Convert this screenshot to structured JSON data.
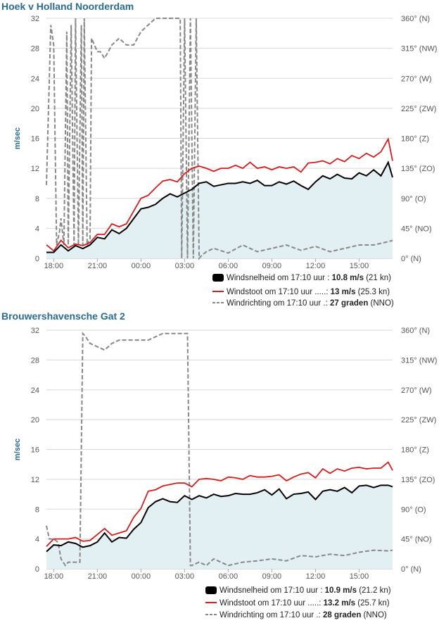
{
  "charts": [
    {
      "title": "Hoek v Holland Noorderdam",
      "legend": [
        {
          "key": "speed",
          "label": "Windsnelheid om 17:10 uur :",
          "value": "10.8 m/s",
          "extra": "(21 kn)"
        },
        {
          "key": "gust",
          "label": "Windstoot om 17:10 uur .....:",
          "value": "13 m/s",
          "extra": "(25.3 kn)"
        },
        {
          "key": "dir",
          "label": "Windrichting om 17:10 uur .:",
          "value": "27 graden",
          "extra": "(NNO)"
        }
      ]
    },
    {
      "title": "Brouwershavensche Gat 2",
      "legend": [
        {
          "key": "speed",
          "label": "Windsnelheid om 17:10 uur :",
          "value": "10.9 m/s",
          "extra": "(21.2 kn)"
        },
        {
          "key": "gust",
          "label": "Windstoot om 17:10 uur .....:",
          "value": "13.2 m/s",
          "extra": "(25.7 kn)"
        },
        {
          "key": "dir",
          "label": "Windrichting om 17:10 uur .:",
          "value": "28 graden",
          "extra": "(NNO)"
        }
      ]
    }
  ],
  "chart_data": [
    {
      "type": "line",
      "title": "Hoek v Holland Noorderdam",
      "ylabel": "m/sec",
      "y_ticks": [
        "0",
        "4",
        "8",
        "12",
        "16",
        "20",
        "24",
        "28",
        "32"
      ],
      "y2_ticks": [
        "0° (N)",
        "45° (NO)",
        "90° (O)",
        "135° (ZO)",
        "180° (Z)",
        "225° (ZW)",
        "270° (W)",
        "315° (NW)",
        "360° (N)"
      ],
      "x_ticks": [
        "18:00",
        "21:00",
        "00:00",
        "03:00",
        "06:00",
        "09:00",
        "12:00",
        "15:00"
      ],
      "ylim": [
        0,
        32
      ],
      "y2lim": [
        0,
        360
      ],
      "xlim_hours": [
        17.5,
        41.3
      ],
      "grid": true,
      "colors": {
        "speed": "#000000",
        "gust": "#d21f1f",
        "dir": "#888888",
        "fill": "#e3f0f3"
      },
      "series": [
        {
          "name": "Windsnelheid",
          "key": "speed",
          "x": [
            17.5,
            18,
            18.5,
            19,
            19.5,
            20,
            20.5,
            21,
            21.5,
            22,
            22.5,
            23,
            23.5,
            24,
            24.5,
            25,
            25.5,
            26,
            26.5,
            27,
            27.5,
            28,
            28.5,
            29,
            29.5,
            30,
            30.5,
            31,
            31.5,
            32,
            32.5,
            33,
            33.5,
            34,
            34.5,
            35,
            35.5,
            36,
            36.5,
            37,
            37.5,
            38,
            38.5,
            39,
            39.5,
            40,
            40.5,
            41,
            41.3
          ],
          "values": [
            0.8,
            0.8,
            1.8,
            1.0,
            1.7,
            1.3,
            1.8,
            2.8,
            2.6,
            3.8,
            3.3,
            4.0,
            5.3,
            6.6,
            6.8,
            7.2,
            8.0,
            8.6,
            8.2,
            8.7,
            9.2,
            10.0,
            10.2,
            9.6,
            9.8,
            10.0,
            10.0,
            10.2,
            10.0,
            10.4,
            9.7,
            9.7,
            10.2,
            9.9,
            10.3,
            9.7,
            9.2,
            10.2,
            11.0,
            10.6,
            11.2,
            10.7,
            10.6,
            11.4,
            11.0,
            11.8,
            11.0,
            12.8,
            10.8
          ]
        },
        {
          "name": "Windstoot",
          "key": "gust",
          "x": [
            17.5,
            18,
            18.5,
            19,
            19.5,
            20,
            20.5,
            21,
            21.5,
            22,
            22.5,
            23,
            23.5,
            24,
            24.5,
            25,
            25.5,
            26,
            26.5,
            27,
            27.5,
            28,
            28.5,
            29,
            29.5,
            30,
            30.5,
            31,
            31.5,
            32,
            32.5,
            33,
            33.5,
            34,
            34.5,
            35,
            35.5,
            36,
            36.5,
            37,
            37.5,
            38,
            38.5,
            39,
            39.5,
            40,
            40.5,
            41,
            41.3
          ],
          "values": [
            1.8,
            1.0,
            2.4,
            1.4,
            1.9,
            1.7,
            2.1,
            3.2,
            3.2,
            4.6,
            4.2,
            4.6,
            6.3,
            8.0,
            8.4,
            9.4,
            10.3,
            10.5,
            10.2,
            11.3,
            12.0,
            12.3,
            12.0,
            11.6,
            12.0,
            12.0,
            12.4,
            12.0,
            12.8,
            12.0,
            12.2,
            11.8,
            12.2,
            12.0,
            12.2,
            11.5,
            12.7,
            12.8,
            13.0,
            12.6,
            13.3,
            12.9,
            13.7,
            13.3,
            14.0,
            13.5,
            14.2,
            15.9,
            13.0
          ]
        },
        {
          "name": "Windrichting",
          "key": "dir",
          "x": [
            17.5,
            17.8,
            18.0,
            18.2,
            18.4,
            18.5,
            18.7,
            18.9,
            19.0,
            19.2,
            19.4,
            19.5,
            19.7,
            19.9,
            20.0,
            20.1,
            20.3,
            20.5,
            20.6,
            20.8,
            21.0,
            21.2,
            21.5,
            22.0,
            22.5,
            23.0,
            23.5,
            24.0,
            24.5,
            25.0,
            25.5,
            26.0,
            26.5,
            26.7,
            26.8,
            27.0,
            27.2,
            27.4,
            27.6,
            27.8,
            28.0,
            28.2,
            28.5,
            29.0,
            30.0,
            31.0,
            32.0,
            33.0,
            34.0,
            35.0,
            36.0,
            37.0,
            38.0,
            39.0,
            40.0,
            41.0,
            41.3
          ],
          "values": [
            110,
            350,
            320,
            20,
            40,
            60,
            20,
            340,
            20,
            350,
            20,
            360,
            20,
            350,
            20,
            360,
            20,
            30,
            330,
            320,
            310,
            310,
            300,
            320,
            330,
            320,
            320,
            340,
            350,
            360,
            360,
            365,
            360,
            365,
            0,
            365,
            0,
            365,
            0,
            365,
            0,
            5,
            10,
            15,
            8,
            20,
            10,
            15,
            20,
            12,
            18,
            10,
            15,
            20,
            20,
            25,
            27
          ]
        }
      ]
    },
    {
      "type": "line",
      "title": "Brouwershavensche Gat 2",
      "ylabel": "m/sec",
      "y_ticks": [
        "0",
        "4",
        "8",
        "12",
        "16",
        "20",
        "24",
        "28",
        "32"
      ],
      "y2_ticks": [
        "0° (N)",
        "45° (NO)",
        "90° (O)",
        "135° (ZO)",
        "180° (Z)",
        "225° (ZW)",
        "270° (W)",
        "315° (NW)",
        "360° (N)"
      ],
      "x_ticks": [
        "18:00",
        "21:00",
        "00:00",
        "03:00",
        "06:00",
        "09:00",
        "12:00",
        "15:00"
      ],
      "ylim": [
        0,
        32
      ],
      "y2lim": [
        0,
        360
      ],
      "xlim_hours": [
        17.5,
        41.3
      ],
      "grid": true,
      "colors": {
        "speed": "#000000",
        "gust": "#d21f1f",
        "dir": "#888888",
        "fill": "#e3f0f3"
      },
      "series": [
        {
          "name": "Windsnelheid",
          "key": "speed",
          "x": [
            17.5,
            18,
            18.5,
            19,
            19.5,
            20,
            20.5,
            21,
            21.5,
            22,
            22.5,
            23,
            23.5,
            24,
            24.5,
            25,
            25.5,
            26,
            26.5,
            27,
            27.5,
            28,
            28.5,
            29,
            29.5,
            30,
            30.5,
            31,
            31.5,
            32,
            32.5,
            33,
            33.5,
            34,
            34.5,
            35,
            35.5,
            36,
            36.5,
            37,
            37.5,
            38,
            38.5,
            39,
            39.5,
            40,
            40.5,
            41,
            41.3
          ],
          "values": [
            2.3,
            3.2,
            3.1,
            3.6,
            3.4,
            2.9,
            3.1,
            3.6,
            4.8,
            3.6,
            4.2,
            4.1,
            5.3,
            6.2,
            8.2,
            9.0,
            9.4,
            9.0,
            8.9,
            9.8,
            9.3,
            9.8,
            9.5,
            10.0,
            9.7,
            9.8,
            10.1,
            10.0,
            10.0,
            10.2,
            10.6,
            9.9,
            10.7,
            9.4,
            10.0,
            10.1,
            10.3,
            9.3,
            10.4,
            10.6,
            10.4,
            10.9,
            10.2,
            11.1,
            11.2,
            10.9,
            11.2,
            11.2,
            11.0
          ]
        },
        {
          "name": "Windstoot",
          "key": "gust",
          "x": [
            17.5,
            18,
            18.5,
            19,
            19.5,
            20,
            20.5,
            21,
            21.5,
            22,
            22.5,
            23,
            23.5,
            24,
            24.5,
            25,
            25.5,
            26,
            26.5,
            27,
            27.5,
            28,
            28.5,
            29,
            29.5,
            30,
            30.5,
            31,
            31.5,
            32,
            32.5,
            33,
            33.5,
            34,
            34.5,
            35,
            35.5,
            36,
            36.5,
            37,
            37.5,
            38,
            38.5,
            39,
            39.5,
            40,
            40.5,
            41,
            41.3
          ],
          "values": [
            3.0,
            4.0,
            4.0,
            4.0,
            4.2,
            3.7,
            3.8,
            4.6,
            5.4,
            4.5,
            4.8,
            5.1,
            6.9,
            8.1,
            10.4,
            10.6,
            11.1,
            11.3,
            11.5,
            11.5,
            11.0,
            12.0,
            12.1,
            12.0,
            11.8,
            12.3,
            12.2,
            12.0,
            12.5,
            12.3,
            12.3,
            12.4,
            12.6,
            11.8,
            12.3,
            12.7,
            12.9,
            12.2,
            13.4,
            12.8,
            13.4,
            13.1,
            13.5,
            13.6,
            13.4,
            13.5,
            13.5,
            14.3,
            13.2
          ]
        },
        {
          "name": "Windrichting",
          "key": "dir",
          "x": [
            17.5,
            17.7,
            18.0,
            18.3,
            18.5,
            18.8,
            19.0,
            19.2,
            19.5,
            19.8,
            20.0,
            20.2,
            20.5,
            21.0,
            21.5,
            22.0,
            22.5,
            23.0,
            23.5,
            24.0,
            24.5,
            25.0,
            25.5,
            26.0,
            26.5,
            27.0,
            27.2,
            27.4,
            27.5,
            28.0,
            28.5,
            29.0,
            29.5,
            30.0,
            31.0,
            32.0,
            33.0,
            34.0,
            35.0,
            36.0,
            37.0,
            38.0,
            39.0,
            40.0,
            41.0,
            41.3
          ],
          "values": [
            65,
            45,
            45,
            40,
            15,
            5,
            10,
            10,
            10,
            10,
            355,
            350,
            340,
            335,
            330,
            340,
            345,
            345,
            345,
            345,
            345,
            350,
            355,
            355,
            355,
            355,
            355,
            5,
            5,
            10,
            5,
            15,
            10,
            5,
            10,
            12,
            15,
            12,
            20,
            18,
            22,
            20,
            25,
            28,
            27,
            28
          ]
        }
      ]
    }
  ]
}
